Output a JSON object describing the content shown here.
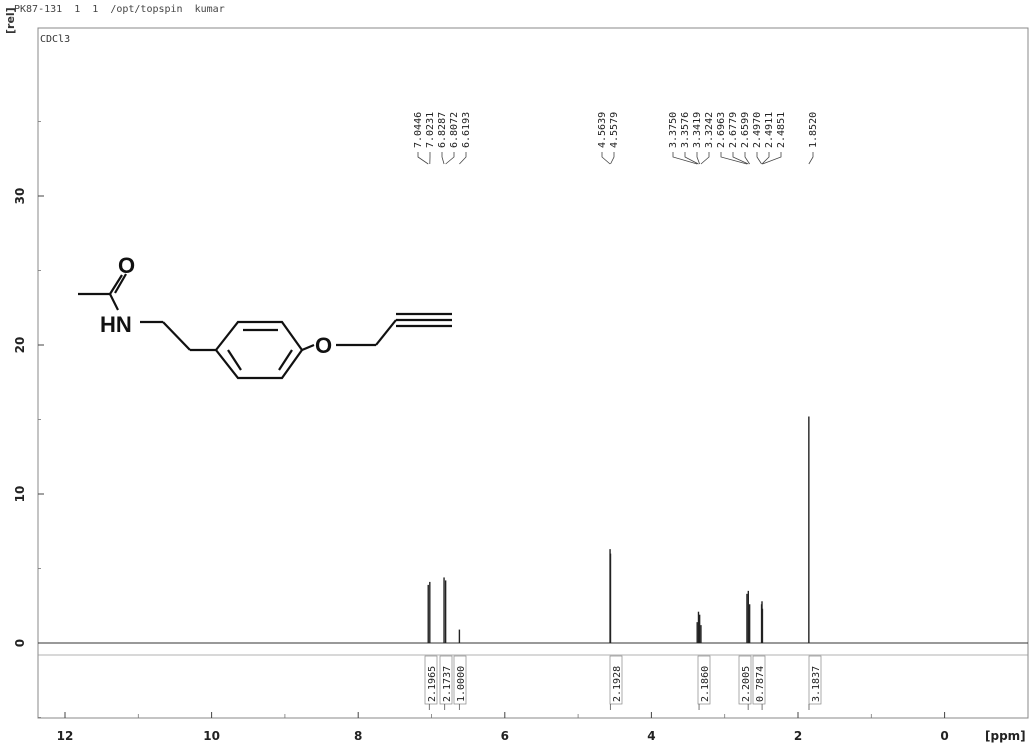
{
  "header": {
    "acquisition": "PK87-131  1  1  /opt/topspin  kumar",
    "solvent": "CDCl3"
  },
  "structure": {
    "atoms": {
      "oxygen_carbonyl": "O",
      "nitrogen": "HN",
      "oxygen_ether": "O"
    }
  },
  "chart_data": {
    "type": "line",
    "xlabel": "[ppm]",
    "ylabel": "[rel]",
    "xlim": [
      12.4,
      -1.1
    ],
    "ylim": [
      -5,
      40
    ],
    "x_axis_reversed": true,
    "xticks": [
      12,
      10,
      8,
      6,
      4,
      2,
      0
    ],
    "yticks": [
      0,
      10,
      20,
      30
    ],
    "peaks": [
      {
        "ppm": 7.0446,
        "height": 3.9
      },
      {
        "ppm": 7.0231,
        "height": 4.1
      },
      {
        "ppm": 6.8287,
        "height": 4.4
      },
      {
        "ppm": 6.8072,
        "height": 4.2
      },
      {
        "ppm": 6.6193,
        "height": 0.9
      },
      {
        "ppm": 4.5639,
        "height": 6.3
      },
      {
        "ppm": 4.5579,
        "height": 6.0
      },
      {
        "ppm": 3.375,
        "height": 1.4
      },
      {
        "ppm": 3.3576,
        "height": 2.1
      },
      {
        "ppm": 3.3419,
        "height": 1.9
      },
      {
        "ppm": 3.3242,
        "height": 1.2
      },
      {
        "ppm": 2.6963,
        "height": 3.3
      },
      {
        "ppm": 2.6779,
        "height": 3.5
      },
      {
        "ppm": 2.6599,
        "height": 2.6
      },
      {
        "ppm": 2.497,
        "height": 2.6
      },
      {
        "ppm": 2.4911,
        "height": 2.8
      },
      {
        "ppm": 2.4851,
        "height": 2.3
      },
      {
        "ppm": 1.852,
        "height": 15.2
      }
    ],
    "peak_label_groups": [
      {
        "labels": [
          "7.0446",
          "7.0231",
          "6.8287",
          "6.8072",
          "6.6193"
        ]
      },
      {
        "labels": [
          "4.5639",
          "4.5579"
        ]
      },
      {
        "labels": [
          "3.3750",
          "3.3576",
          "3.3419",
          "3.3242",
          "2.6963",
          "2.6779",
          "2.6599",
          "2.4970",
          "2.4911",
          "2.4851"
        ]
      },
      {
        "labels": [
          "1.8520"
        ]
      }
    ],
    "integrals": [
      {
        "ppm": 7.03,
        "value": "2.1965"
      },
      {
        "ppm": 6.82,
        "value": "2.1737"
      },
      {
        "ppm": 6.62,
        "value": "1.0000"
      },
      {
        "ppm": 4.56,
        "value": "2.1928"
      },
      {
        "ppm": 3.35,
        "value": "2.1860"
      },
      {
        "ppm": 2.68,
        "value": "2.2005"
      },
      {
        "ppm": 2.49,
        "value": "0.7874"
      },
      {
        "ppm": 1.85,
        "value": "3.1837"
      }
    ]
  }
}
